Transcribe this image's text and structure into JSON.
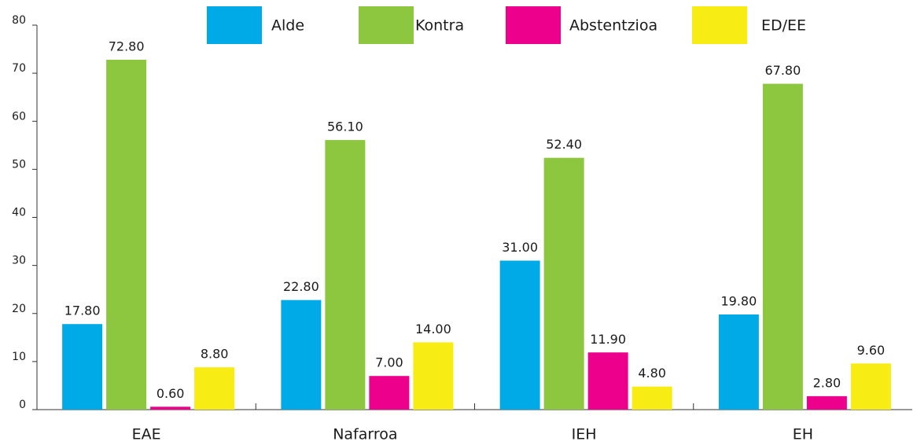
{
  "chart_data": {
    "type": "bar",
    "categories": [
      "EAE",
      "Nafarroa",
      "IEH",
      "EH"
    ],
    "series": [
      {
        "name": "Alde",
        "color": "#00aae7",
        "values": [
          17.8,
          22.8,
          31.0,
          19.8
        ],
        "value_labels": [
          "17.80",
          "22.80",
          "31.00",
          "19.80"
        ]
      },
      {
        "name": "Kontra",
        "color": "#8dc63f",
        "values": [
          72.8,
          56.1,
          52.4,
          67.8
        ],
        "value_labels": [
          "72.80",
          "56.10",
          "52.40",
          "67.80"
        ]
      },
      {
        "name": "Abstentzioa",
        "color": "#ec008c",
        "values": [
          0.6,
          7.0,
          11.9,
          2.8
        ],
        "value_labels": [
          "0.60",
          "7.00",
          "11.90",
          "2.80"
        ]
      },
      {
        "name": "ED/EE",
        "color": "#f7ec13",
        "values": [
          8.8,
          14.0,
          4.8,
          9.6
        ],
        "value_labels": [
          "8.80",
          "14.00",
          "4.80",
          "9.60"
        ]
      }
    ],
    "ylim": [
      0,
      80
    ],
    "yticks": [
      0,
      10,
      20,
      30,
      40,
      50,
      60,
      70,
      80
    ],
    "legend": "top"
  }
}
